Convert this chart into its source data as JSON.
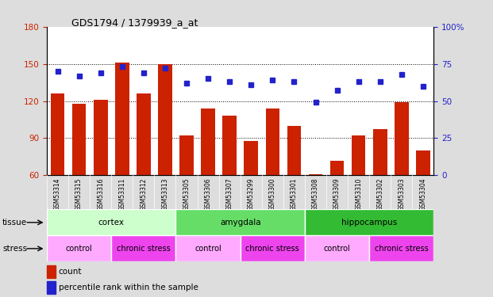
{
  "title": "GDS1794 / 1379939_a_at",
  "samples": [
    "GSM53314",
    "GSM53315",
    "GSM53316",
    "GSM53311",
    "GSM53312",
    "GSM53313",
    "GSM53305",
    "GSM53306",
    "GSM53307",
    "GSM53299",
    "GSM53300",
    "GSM53301",
    "GSM53308",
    "GSM53309",
    "GSM53310",
    "GSM53302",
    "GSM53303",
    "GSM53304"
  ],
  "counts": [
    126,
    118,
    121,
    151,
    126,
    150,
    92,
    114,
    108,
    88,
    114,
    100,
    61,
    72,
    92,
    97,
    119,
    80
  ],
  "percentiles": [
    70,
    67,
    69,
    73,
    69,
    72,
    62,
    65,
    63,
    61,
    64,
    63,
    49,
    57,
    63,
    63,
    68,
    60
  ],
  "ylim_left": [
    60,
    180
  ],
  "ylim_right": [
    0,
    100
  ],
  "yticks_left": [
    60,
    90,
    120,
    150,
    180
  ],
  "yticks_right": [
    0,
    25,
    50,
    75,
    100
  ],
  "bar_color": "#cc2200",
  "dot_color": "#2222cc",
  "tissue_groups": [
    {
      "label": "cortex",
      "start": 0,
      "end": 6,
      "color": "#ccffcc"
    },
    {
      "label": "amygdala",
      "start": 6,
      "end": 12,
      "color": "#66dd66"
    },
    {
      "label": "hippocampus",
      "start": 12,
      "end": 18,
      "color": "#33bb33"
    }
  ],
  "stress_groups": [
    {
      "label": "control",
      "start": 0,
      "end": 3,
      "color": "#ffaaff"
    },
    {
      "label": "chronic stress",
      "start": 3,
      "end": 6,
      "color": "#ee44ee"
    },
    {
      "label": "control",
      "start": 6,
      "end": 9,
      "color": "#ffaaff"
    },
    {
      "label": "chronic stress",
      "start": 9,
      "end": 12,
      "color": "#ee44ee"
    },
    {
      "label": "control",
      "start": 12,
      "end": 15,
      "color": "#ffaaff"
    },
    {
      "label": "chronic stress",
      "start": 15,
      "end": 18,
      "color": "#ee44ee"
    }
  ],
  "tissue_label": "tissue",
  "stress_label": "stress",
  "legend_count_label": "count",
  "legend_pct_label": "percentile rank within the sample",
  "fig_bg_color": "#dddddd",
  "plot_bg_color": "#ffffff",
  "xtick_bg_color": "#c8c8c8"
}
